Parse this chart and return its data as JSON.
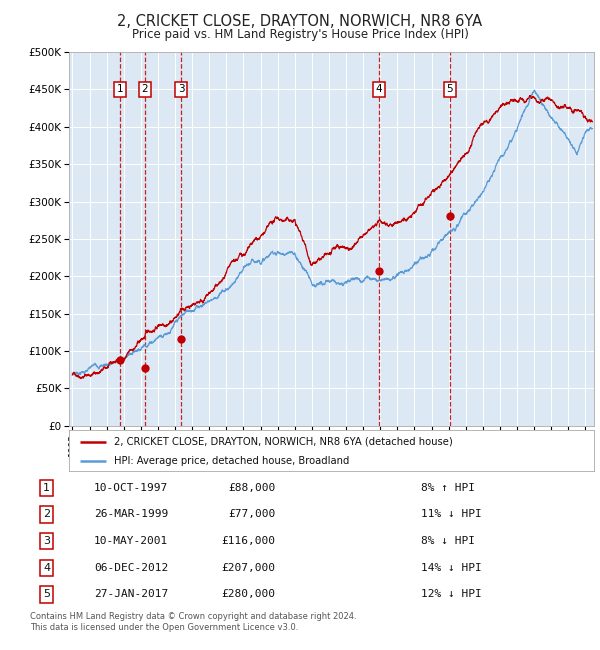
{
  "title": "2, CRICKET CLOSE, DRAYTON, NORWICH, NR8 6YA",
  "subtitle": "Price paid vs. HM Land Registry's House Price Index (HPI)",
  "title_fontsize": 10.5,
  "subtitle_fontsize": 8.5,
  "plot_bg_color": "#dce9f5",
  "hpi_line_color": "#5b9bd5",
  "price_line_color": "#c00000",
  "dashed_line_color": "#c00000",
  "ylim": [
    0,
    500000
  ],
  "yticks": [
    0,
    50000,
    100000,
    150000,
    200000,
    250000,
    300000,
    350000,
    400000,
    450000,
    500000
  ],
  "ytick_labels": [
    "£0",
    "£50K",
    "£100K",
    "£150K",
    "£200K",
    "£250K",
    "£300K",
    "£350K",
    "£400K",
    "£450K",
    "£500K"
  ],
  "xlim_start": 1994.8,
  "xlim_end": 2025.5,
  "xticks": [
    1995,
    1996,
    1997,
    1998,
    1999,
    2000,
    2001,
    2002,
    2003,
    2004,
    2005,
    2006,
    2007,
    2008,
    2009,
    2010,
    2011,
    2012,
    2013,
    2014,
    2015,
    2016,
    2017,
    2018,
    2019,
    2020,
    2021,
    2022,
    2023,
    2024,
    2025
  ],
  "sale_dates": [
    1997.78,
    1999.23,
    2001.36,
    2012.92,
    2017.07
  ],
  "sale_prices": [
    88000,
    77000,
    116000,
    207000,
    280000
  ],
  "sale_labels": [
    "1",
    "2",
    "3",
    "4",
    "5"
  ],
  "legend_price_label": "2, CRICKET CLOSE, DRAYTON, NORWICH, NR8 6YA (detached house)",
  "legend_hpi_label": "HPI: Average price, detached house, Broadland",
  "table_rows": [
    [
      "1",
      "10-OCT-1997",
      "£88,000",
      "8% ↑ HPI"
    ],
    [
      "2",
      "26-MAR-1999",
      "£77,000",
      "11% ↓ HPI"
    ],
    [
      "3",
      "10-MAY-2001",
      "£116,000",
      "8% ↓ HPI"
    ],
    [
      "4",
      "06-DEC-2012",
      "£207,000",
      "14% ↓ HPI"
    ],
    [
      "5",
      "27-JAN-2017",
      "£280,000",
      "12% ↓ HPI"
    ]
  ],
  "footer_text": "Contains HM Land Registry data © Crown copyright and database right 2024.\nThis data is licensed under the Open Government Licence v3.0."
}
